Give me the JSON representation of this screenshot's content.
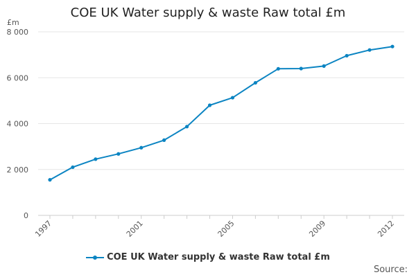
{
  "chart_data": {
    "type": "line",
    "title": "COE UK Water supply & waste Raw total £m",
    "ylabel": "£m",
    "xlabel": "",
    "ylim": [
      0,
      8000
    ],
    "y_ticks": [
      0,
      2000,
      4000,
      6000,
      8000
    ],
    "y_tick_labels": [
      "0",
      "2 000",
      "4 000",
      "6 000",
      "8 000"
    ],
    "x": [
      1997,
      1998,
      1999,
      2000,
      2001,
      2002,
      2003,
      2004,
      2005,
      2006,
      2007,
      2008,
      2009,
      2010,
      2011,
      2012
    ],
    "x_tick_labels": [
      "1997",
      "2001",
      "2005",
      "2009",
      "2012"
    ],
    "series": [
      {
        "name": "COE UK Water supply & waste Raw total £m",
        "values": [
          1550,
          2100,
          2450,
          2680,
          2950,
          3280,
          3870,
          4800,
          5130,
          5780,
          6390,
          6400,
          6510,
          6960,
          7210,
          7360
        ],
        "color": "#0b84c2"
      }
    ],
    "legend": "bottom-center",
    "grid": true
  },
  "source_label": "Source:"
}
